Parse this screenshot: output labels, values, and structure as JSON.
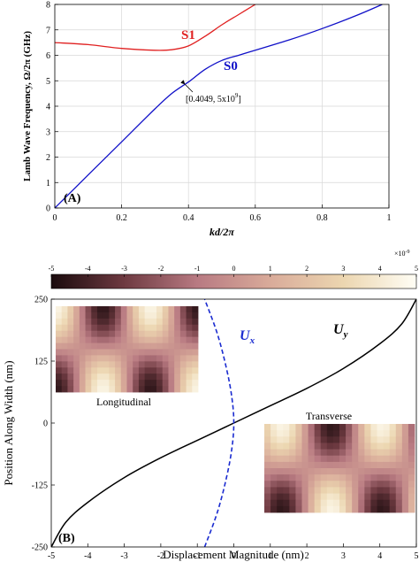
{
  "chart_data": [
    {
      "type": "line",
      "panel_label": "(A)",
      "xlabel": "kd/2π",
      "ylabel": "Lamb Wave Frequency, Ω/2π (GHz)",
      "xlim": [
        0,
        1
      ],
      "ylim": [
        0,
        8
      ],
      "xticks": [
        "0",
        "0.2",
        "0.4",
        "0.6",
        "0.8",
        "1"
      ],
      "yticks": [
        "0",
        "1",
        "2",
        "3",
        "4",
        "5",
        "6",
        "7",
        "8"
      ],
      "grid": true,
      "series": [
        {
          "name": "S1",
          "color": "#e02020",
          "x": [
            0.0,
            0.1,
            0.2,
            0.3,
            0.35,
            0.4,
            0.45,
            0.5,
            0.55,
            0.6
          ],
          "y": [
            6.5,
            6.42,
            6.27,
            6.2,
            6.22,
            6.37,
            6.75,
            7.2,
            7.6,
            8.0
          ]
        },
        {
          "name": "S0",
          "color": "#1010c8",
          "x": [
            0.0,
            0.1,
            0.2,
            0.3,
            0.35,
            0.4049,
            0.45,
            0.5,
            0.55,
            0.6,
            0.7,
            0.8,
            0.9,
            0.98
          ],
          "y": [
            0.0,
            1.3,
            2.6,
            3.9,
            4.5,
            5.0,
            5.45,
            5.8,
            6.0,
            6.2,
            6.6,
            7.05,
            7.55,
            8.0
          ]
        }
      ],
      "annotation": {
        "text_main": "[0.4049, 5x10",
        "text_exp": "9",
        "text_close": "]",
        "point": [
          0.4049,
          5.0
        ]
      }
    },
    {
      "type": "heatmap",
      "role": "colorbar",
      "range": [
        -5,
        5
      ],
      "ticks": [
        "-5",
        "-4",
        "-3",
        "-2",
        "-1",
        "0",
        "1",
        "2",
        "3",
        "4",
        "5"
      ],
      "multiplier_base": "×10",
      "multiplier_exp": "-9",
      "colors": [
        "#1a0b0d",
        "#6e3a41",
        "#b87a82",
        "#d9ab9a",
        "#ecd6b0",
        "#fffef5"
      ]
    },
    {
      "type": "line",
      "panel_label": "(B)",
      "xlabel": "Displacement Magnitude (nm)",
      "ylabel": "Position Along Width (nm)",
      "xlim": [
        -5,
        5
      ],
      "ylim": [
        -250,
        250
      ],
      "xticks": [
        "-5",
        "-4",
        "-3",
        "-2",
        "-1",
        "0",
        "1",
        "2",
        "3",
        "4",
        "5"
      ],
      "yticks": [
        "-250",
        "-125",
        "0",
        "125",
        "250"
      ],
      "series": [
        {
          "name": "U_y",
          "label_main": "U",
          "label_sub": "y",
          "color": "#000000",
          "style": "solid",
          "x": [
            -5.0,
            -4.6,
            -4.0,
            -3.0,
            -2.0,
            -1.0,
            0.0,
            1.0,
            2.0,
            3.0,
            4.0,
            4.6,
            5.0
          ],
          "y": [
            -250,
            -200,
            -160,
            -110,
            -70,
            -35,
            0,
            35,
            70,
            110,
            160,
            200,
            250
          ]
        },
        {
          "name": "U_x",
          "label_main": "U",
          "label_sub": "x",
          "color": "#1a2bd0",
          "style": "dashed",
          "x": [
            -0.8,
            -0.45,
            -0.2,
            -0.05,
            0.0,
            -0.05,
            -0.2,
            -0.45,
            -0.8
          ],
          "y": [
            -250,
            -180,
            -110,
            -50,
            0,
            50,
            110,
            180,
            250
          ]
        }
      ],
      "insets": [
        {
          "label": "Longitudinal",
          "mode": "longitudinal"
        },
        {
          "label": "Transverse",
          "mode": "transverse"
        }
      ]
    }
  ]
}
